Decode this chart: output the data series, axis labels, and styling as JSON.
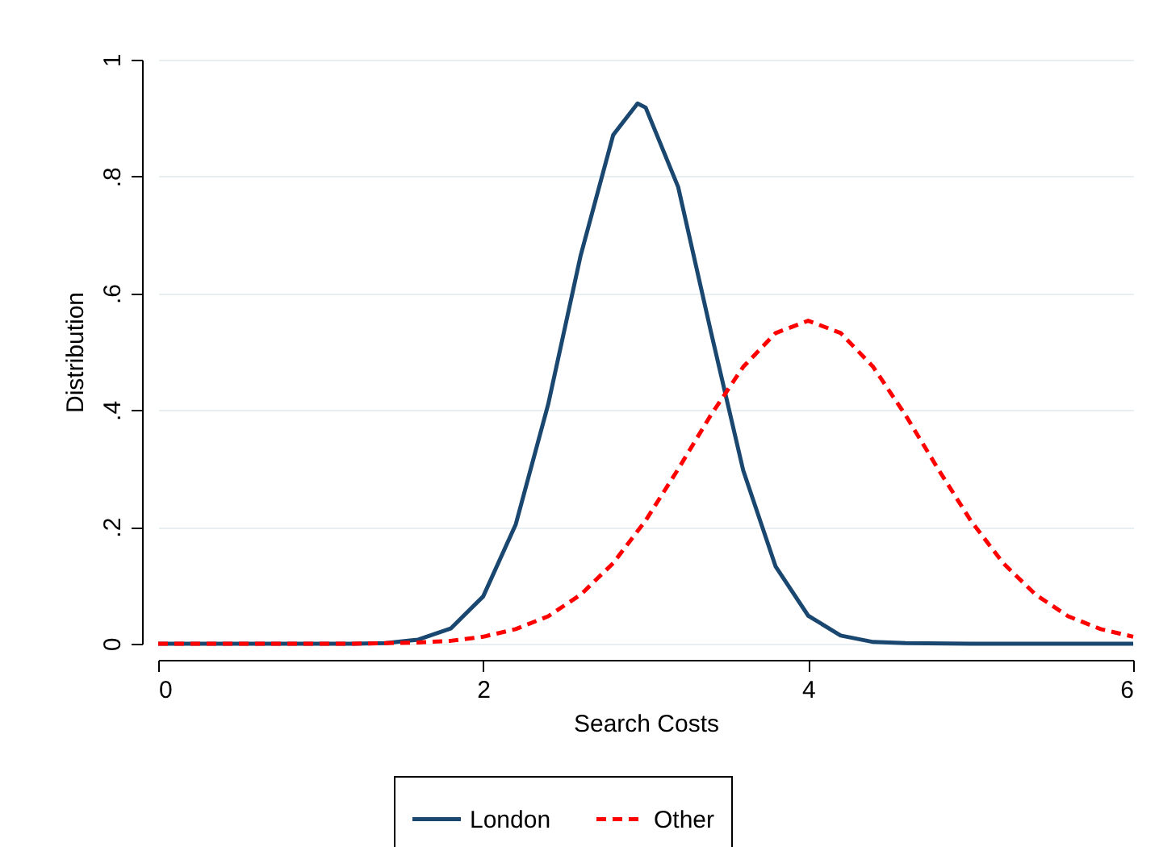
{
  "chart_data": {
    "type": "line",
    "xlabel": "Search Costs",
    "ylabel": "Distribution",
    "xlim": [
      0,
      6
    ],
    "xticks": [
      0,
      2,
      4,
      6
    ],
    "ylim": [
      0,
      1
    ],
    "yticks": [
      0,
      {
        "value": 0.2,
        "label": ".2"
      },
      {
        "value": 0.4,
        "label": ".4"
      },
      {
        "value": 0.6,
        "label": ".6"
      },
      {
        "value": 0.8,
        "label": ".8"
      },
      1
    ],
    "grid": "y",
    "legend": "bottom",
    "marker": "none",
    "series": [
      {
        "name": "London",
        "color": "#1a476f",
        "line_style": "solid",
        "x": [
          0,
          0.4,
          0.8,
          1.2,
          1.4,
          1.6,
          1.8,
          2.0,
          2.2,
          2.4,
          2.6,
          2.8,
          2.95,
          3.0,
          3.2,
          3.4,
          3.6,
          3.8,
          4.0,
          4.2,
          4.4,
          4.6,
          5.0,
          5.5,
          6.0
        ],
        "values": [
          0,
          0,
          0,
          0,
          0.001,
          0.007,
          0.026,
          0.081,
          0.204,
          0.41,
          0.665,
          0.871,
          0.925,
          0.918,
          0.782,
          0.536,
          0.297,
          0.132,
          0.048,
          0.014,
          0.003,
          0.001,
          0,
          0,
          0
        ]
      },
      {
        "name": "Other",
        "color": "#ff0000",
        "line_style": "dashed",
        "x": [
          0,
          0.4,
          0.8,
          1.2,
          1.4,
          1.6,
          1.8,
          2.0,
          2.2,
          2.4,
          2.6,
          2.8,
          3.0,
          3.2,
          3.4,
          3.6,
          3.8,
          4.0,
          4.2,
          4.4,
          4.6,
          4.8,
          5.0,
          5.2,
          5.4,
          5.6,
          5.8,
          6.0
        ],
        "values": [
          0,
          0,
          0,
          0,
          0.001,
          0.002,
          0.005,
          0.012,
          0.025,
          0.047,
          0.084,
          0.138,
          0.211,
          0.299,
          0.391,
          0.474,
          0.532,
          0.553,
          0.532,
          0.474,
          0.391,
          0.299,
          0.211,
          0.138,
          0.084,
          0.047,
          0.025,
          0.012
        ]
      }
    ]
  }
}
